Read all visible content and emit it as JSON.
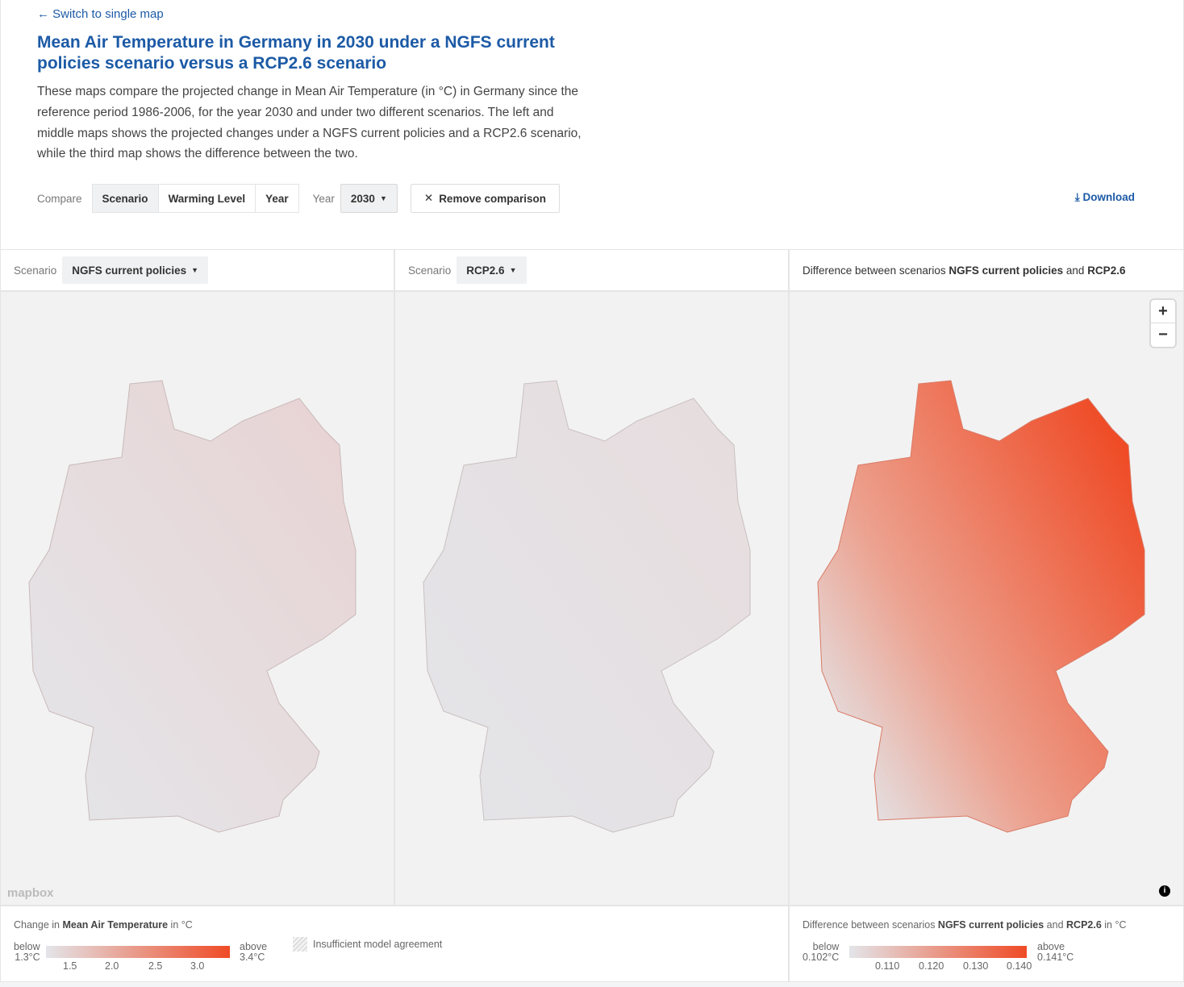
{
  "header": {
    "back_link": "Switch to single map",
    "title": "Mean Air Temperature in Germany in 2030 under a NGFS current policies scenario versus a RCP2.6 scenario",
    "description": "These maps compare the projected change in Mean Air Temperature (in °C) in Germany since the reference period 1986-2006, for the year 2030 and under two different scenarios. The left and middle maps shows the projected changes under a NGFS current policies and a RCP2.6 scenario, while the third map shows the difference between the two."
  },
  "controls": {
    "compare_label": "Compare",
    "compare_options": [
      "Scenario",
      "Warming Level",
      "Year"
    ],
    "compare_selected": "Scenario",
    "year_label": "Year",
    "year_value": "2030",
    "remove_label": "Remove comparison",
    "download_label": "Download"
  },
  "panels": {
    "left": {
      "label": "Scenario",
      "value": "NGFS current policies"
    },
    "middle": {
      "label": "Scenario",
      "value": "RCP2.6"
    },
    "right": {
      "prefix": "Difference between scenarios ",
      "a": "NGFS current policies",
      "and": " and ",
      "b": "RCP2.6"
    }
  },
  "map": {
    "attribution": "mapbox",
    "zoom_in": "+",
    "zoom_out": "−"
  },
  "legend_main": {
    "prefix": "Change in ",
    "bold": "Mean Air Temperature",
    "suffix": " in °C",
    "below_label": "below",
    "below_value": "1.3°C",
    "above_label": "above",
    "above_value": "3.4°C",
    "ticks": [
      "1.5",
      "2.0",
      "2.5",
      "3.0"
    ],
    "hatch_label": "Insufficient model agreement",
    "colors": [
      "#e3e5e9",
      "#ef4b26"
    ]
  },
  "legend_diff": {
    "prefix": "Difference between scenarios ",
    "a": "NGFS current policies",
    "and": " and ",
    "b": "RCP2.6",
    "suffix": " in °C",
    "below_label": "below",
    "below_value": "0.102°C",
    "above_label": "above",
    "above_value": "0.141°C",
    "ticks": [
      "0.110",
      "0.120",
      "0.130",
      "0.140"
    ]
  }
}
